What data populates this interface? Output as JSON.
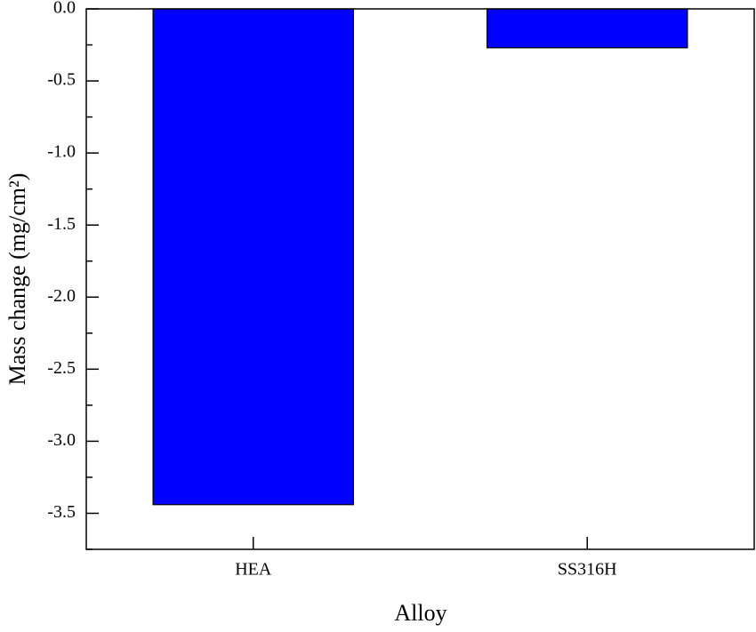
{
  "chart_data": {
    "type": "bar",
    "categories": [
      "HEA",
      "SS316H"
    ],
    "values": [
      -3.44,
      -0.27
    ],
    "color": "#0000ff",
    "xlabel": "Alloy",
    "ylabel": "Mass change (mg/cm²)",
    "ylim": [
      -3.75,
      0
    ],
    "yticks": [
      {
        "value": 0,
        "label": "0.0"
      },
      -0.5,
      {
        "value": -1,
        "label": "-1.0"
      },
      -1.5,
      {
        "value": -2,
        "label": "-2.0"
      },
      -2.5,
      {
        "value": -3,
        "label": "-3.0"
      },
      -3.5
    ],
    "yminorticks": [
      -0.25,
      -0.75,
      -1.25,
      -1.75,
      -2.25,
      -2.75,
      -3.25,
      -3.75
    ]
  }
}
